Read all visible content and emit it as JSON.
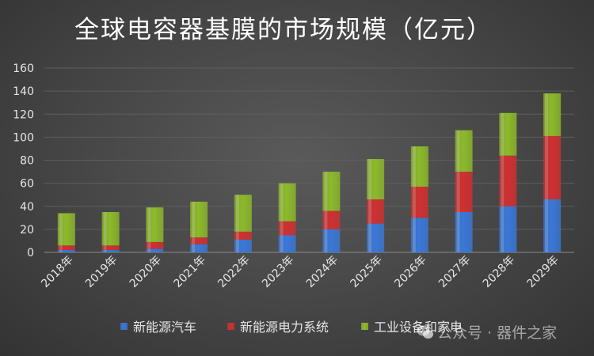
{
  "chart_data": {
    "type": "bar",
    "stacked": true,
    "title": "全球电容器基膜的市场规模（亿元）",
    "categories": [
      "2018年",
      "2019年",
      "2020年",
      "2021年",
      "2022年",
      "2023年",
      "2024年",
      "2025年",
      "2026年",
      "2027年",
      "2028年",
      "2029年"
    ],
    "series": [
      {
        "name": "新能源汽车",
        "color": "#3a78d8",
        "values": [
          2,
          2,
          3,
          7,
          11,
          15,
          20,
          25,
          30,
          35,
          40,
          46
        ]
      },
      {
        "name": "新能源电力系统",
        "color": "#d03030",
        "values": [
          4,
          4,
          6,
          6,
          7,
          12,
          16,
          21,
          27,
          35,
          44,
          55
        ]
      },
      {
        "name": "工业设备和家电",
        "color": "#8dba2a",
        "values": [
          28,
          29,
          30,
          31,
          32,
          33,
          34,
          35,
          35,
          36,
          37,
          37
        ]
      }
    ],
    "ylim": [
      0,
      160
    ],
    "yticks": [
      0,
      20,
      40,
      60,
      80,
      100,
      120,
      140,
      160
    ],
    "grid": true,
    "legend": "bottom",
    "xlabel": "",
    "ylabel": ""
  },
  "watermark": "公众号 · 器件之家"
}
